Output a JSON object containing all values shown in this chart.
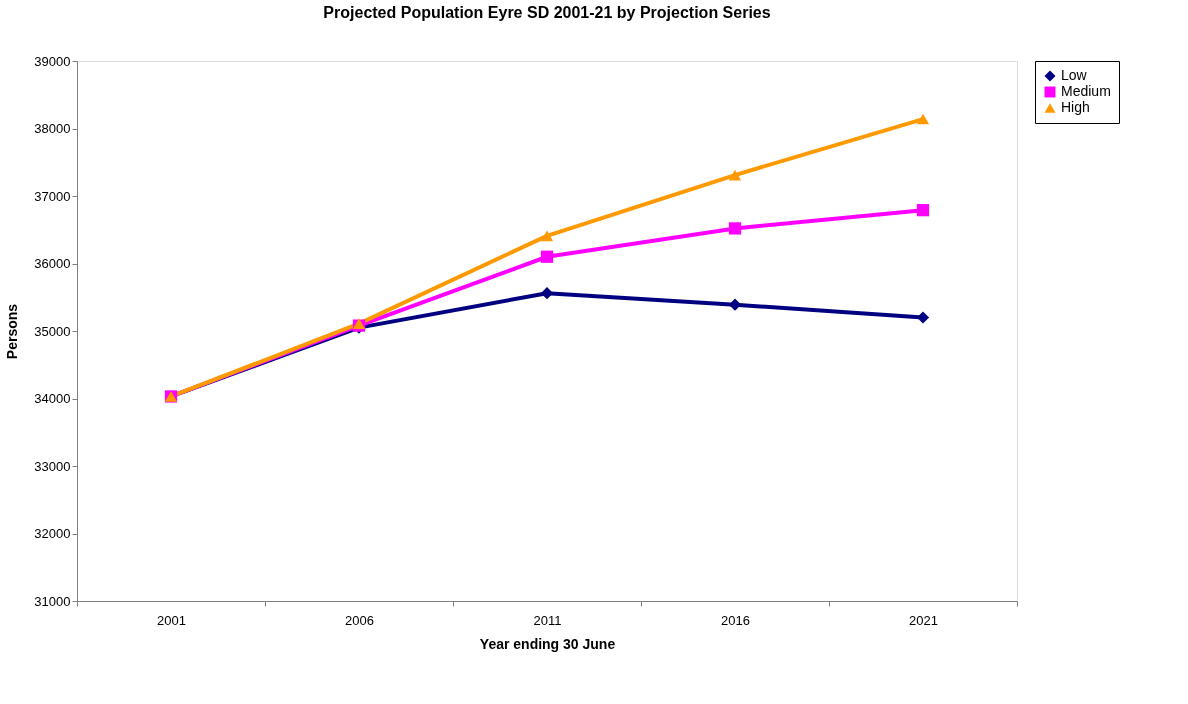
{
  "chart_data": {
    "type": "line",
    "title": "Projected Population Eyre SD 2001-21 by Projection Series",
    "xlabel": "Year ending 30 June",
    "ylabel": "Persons",
    "categories": [
      "2001",
      "2006",
      "2011",
      "2016",
      "2021"
    ],
    "series": [
      {
        "name": "Low",
        "color": "#000080",
        "marker": "diamond",
        "values": [
          34030,
          35050,
          35560,
          35390,
          35200
        ]
      },
      {
        "name": "Medium",
        "color": "#ff00ff",
        "marker": "square",
        "values": [
          34030,
          35080,
          36100,
          36520,
          36790
        ]
      },
      {
        "name": "High",
        "color": "#ff9900",
        "marker": "triangle",
        "values": [
          34030,
          35110,
          36410,
          37310,
          38140
        ]
      }
    ],
    "ylim": [
      31000,
      39000
    ],
    "yticks": [
      31000,
      32000,
      33000,
      34000,
      35000,
      36000,
      37000,
      38000,
      39000
    ],
    "grid": false,
    "legend": "right",
    "line_style": "solid"
  }
}
